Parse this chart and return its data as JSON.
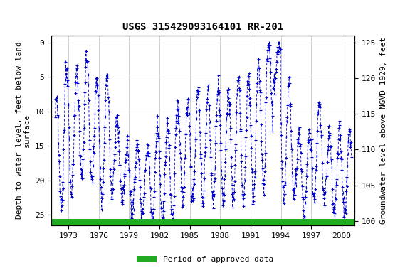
{
  "title": "USGS 315429093164101 RR-201",
  "ylabel_left": "Depth to water level, feet below land\nsurface",
  "ylabel_right": "Groundwater level above NGVD 1929, feet",
  "ylim_left": [
    26.5,
    -1.0
  ],
  "ylim_right": [
    99.4,
    126.0
  ],
  "xlim": [
    1971.3,
    2001.3
  ],
  "xticks": [
    1973,
    1976,
    1979,
    1982,
    1985,
    1988,
    1991,
    1994,
    1997,
    2000
  ],
  "yticks_left": [
    0,
    5,
    10,
    15,
    20,
    25
  ],
  "yticks_right": [
    100,
    105,
    110,
    115,
    120,
    125
  ],
  "data_color": "#0000cc",
  "legend_label": "Period of approved data",
  "legend_color": "#22aa22",
  "background_color": "#ffffff",
  "plot_bg_color": "#ffffff",
  "grid_color": "#bbbbbb",
  "title_fontsize": 10,
  "label_fontsize": 8,
  "tick_fontsize": 8
}
